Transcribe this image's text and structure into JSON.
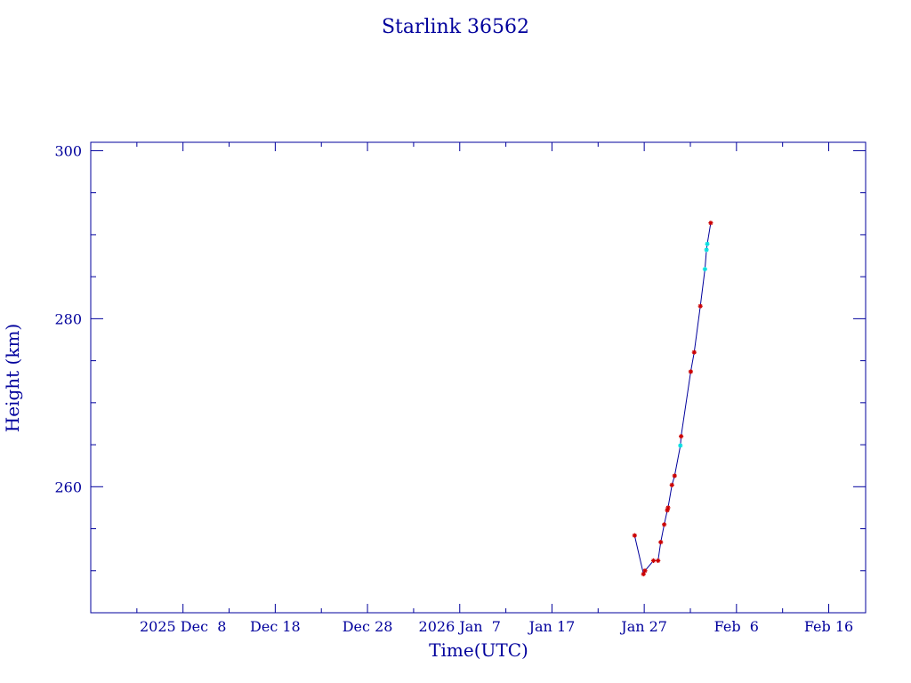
{
  "colors": {
    "axis": "#00009c",
    "line": "#00009c",
    "point_red": "#cc0000",
    "point_cyan": "#00e0e0"
  },
  "chart_data": {
    "type": "line",
    "title": "Starlink 36562",
    "xlabel": "Time(UTC)",
    "ylabel": "Height (km)",
    "x_is_date": true,
    "xlim": [
      "2025-11-28",
      "2026-02-20"
    ],
    "ylim": [
      245,
      301
    ],
    "x_ticks": [
      {
        "date": "2025-12-08",
        "label": "2025 Dec  8"
      },
      {
        "date": "2025-12-18",
        "label": "Dec 18"
      },
      {
        "date": "2025-12-28",
        "label": "Dec 28"
      },
      {
        "date": "2026-01-07",
        "label": "2026 Jan  7"
      },
      {
        "date": "2026-01-17",
        "label": "Jan 17"
      },
      {
        "date": "2026-01-27",
        "label": "Jan 27"
      },
      {
        "date": "2026-02-06",
        "label": "Feb  6"
      },
      {
        "date": "2026-02-16",
        "label": "Feb 16"
      }
    ],
    "y_ticks": [
      260,
      280,
      300
    ],
    "grid": false,
    "series": [
      {
        "points": [
          {
            "x": "2026-01-25T23:00",
            "y": 254.2,
            "c": "red"
          },
          {
            "x": "2026-01-26T22:00",
            "y": 249.6,
            "c": "red"
          },
          {
            "x": "2026-01-27T02:00",
            "y": 250.0,
            "c": "red"
          },
          {
            "x": "2026-01-28T00:00",
            "y": 251.2,
            "c": "red"
          },
          {
            "x": "2026-01-28T12:00",
            "y": 251.2,
            "c": "red"
          },
          {
            "x": "2026-01-28T19:00",
            "y": 253.4,
            "c": "red"
          },
          {
            "x": "2026-01-29T04:00",
            "y": 255.5,
            "c": "red"
          },
          {
            "x": "2026-01-29T12:00",
            "y": 257.2,
            "c": "red"
          },
          {
            "x": "2026-01-29T14:00",
            "y": 257.5,
            "c": "red"
          },
          {
            "x": "2026-01-30T00:00",
            "y": 260.2,
            "c": "red"
          },
          {
            "x": "2026-01-30T07:00",
            "y": 261.3,
            "c": "red"
          },
          {
            "x": "2026-01-30T22:00",
            "y": 264.9,
            "c": "cyan"
          },
          {
            "x": "2026-01-31T00:00",
            "y": 266.0,
            "c": "red"
          },
          {
            "x": "2026-02-01T01:00",
            "y": 273.7,
            "c": "red"
          },
          {
            "x": "2026-02-01T10:00",
            "y": 276.0,
            "c": "red"
          },
          {
            "x": "2026-02-02T02:00",
            "y": 281.5,
            "c": "red"
          },
          {
            "x": "2026-02-02T14:00",
            "y": 285.9,
            "c": "cyan"
          },
          {
            "x": "2026-02-02T18:00",
            "y": 288.2,
            "c": "cyan"
          },
          {
            "x": "2026-02-02T20:00",
            "y": 288.9,
            "c": "cyan"
          },
          {
            "x": "2026-02-03T05:00",
            "y": 291.4,
            "c": "red"
          }
        ]
      }
    ]
  }
}
